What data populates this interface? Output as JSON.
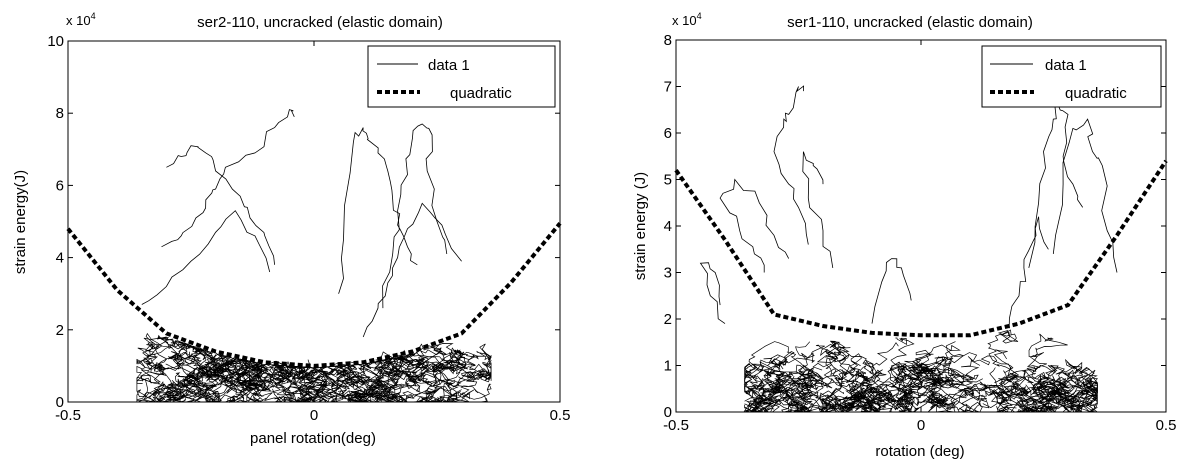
{
  "chart_data": [
    {
      "type": "line",
      "title": "ser2-110, uncracked (elastic domain)",
      "xlabel": "panel rotation(deg)",
      "ylabel": "strain energy(J)",
      "y_exponent_base": "x 10",
      "y_exponent": "4",
      "xlim": [
        -0.5,
        0.5
      ],
      "ylim": [
        0,
        10
      ],
      "xticks": [
        "-0.5",
        "0",
        "0.5"
      ],
      "yticks": [
        "0",
        "2",
        "4",
        "6",
        "8",
        "10"
      ],
      "legend_position": "top-right",
      "series": [
        {
          "name": "data 1",
          "style": "solid",
          "color": "#000000"
        },
        {
          "name": "quadratic",
          "style": "dotted",
          "color": "#000000",
          "x": [
            -0.5,
            -0.4,
            -0.3,
            -0.2,
            -0.1,
            0,
            0.1,
            0.2,
            0.3,
            0.4,
            0.5
          ],
          "y": [
            4.8,
            3.1,
            1.9,
            1.4,
            1.1,
            1.0,
            1.1,
            1.4,
            1.9,
            3.3,
            4.95
          ]
        }
      ],
      "traces": [
        {
          "x": [
            -0.08,
            -0.1,
            -0.13,
            -0.15,
            -0.2,
            -0.22,
            -0.25,
            -0.27,
            -0.3
          ],
          "y": [
            3.8,
            4.6,
            5.1,
            5.7,
            6.4,
            6.9,
            7.1,
            6.8,
            6.5
          ]
        },
        {
          "x": [
            -0.04,
            -0.05,
            -0.08,
            -0.12,
            -0.18,
            -0.2,
            -0.22,
            -0.24,
            -0.27,
            -0.31
          ],
          "y": [
            7.9,
            8.1,
            7.6,
            6.9,
            6.5,
            5.9,
            5.6,
            5.1,
            4.6,
            4.3
          ]
        },
        {
          "x": [
            0.05,
            0.06,
            0.08,
            0.1,
            0.11,
            0.13,
            0.15,
            0.16,
            0.17,
            0.19,
            0.21
          ],
          "y": [
            3.0,
            4.5,
            7.2,
            7.6,
            7.3,
            6.9,
            6.4,
            5.6,
            4.9,
            4.3,
            3.8
          ]
        },
        {
          "x": [
            0.14,
            0.16,
            0.17,
            0.19,
            0.2,
            0.22,
            0.24,
            0.23,
            0.25,
            0.27
          ],
          "y": [
            2.6,
            4.1,
            5.3,
            6.3,
            7.3,
            7.7,
            7.4,
            6.4,
            5.0,
            4.1
          ]
        },
        {
          "x": [
            -0.35,
            -0.3,
            -0.25,
            -0.2,
            -0.16,
            -0.12,
            -0.09
          ],
          "y": [
            2.7,
            3.2,
            3.9,
            4.7,
            5.3,
            4.6,
            3.6
          ]
        },
        {
          "x": [
            0.1,
            0.13,
            0.15,
            0.17,
            0.19,
            0.22,
            0.26,
            0.3
          ],
          "y": [
            1.8,
            2.6,
            3.3,
            4.0,
            4.8,
            5.5,
            4.9,
            3.9
          ]
        }
      ]
    },
    {
      "type": "line",
      "title": "ser1-110, uncracked (elastic domain)",
      "xlabel": "rotation (deg)",
      "ylabel": "strain energy (J)",
      "y_exponent_base": "x 10",
      "y_exponent": "4",
      "xlim": [
        -0.5,
        0.5
      ],
      "ylim": [
        0,
        8
      ],
      "xticks": [
        "-0.5",
        "0",
        "0.5"
      ],
      "yticks": [
        "0",
        "1",
        "2",
        "3",
        "4",
        "5",
        "6",
        "7",
        "8"
      ],
      "legend_position": "top-right",
      "series": [
        {
          "name": "data 1",
          "style": "solid",
          "color": "#000000"
        },
        {
          "name": "quadratic",
          "style": "dotted",
          "color": "#000000",
          "x": [
            -0.5,
            -0.4,
            -0.3,
            -0.2,
            -0.1,
            0,
            0.1,
            0.2,
            0.3,
            0.4,
            0.5
          ],
          "y": [
            5.2,
            3.7,
            2.1,
            1.85,
            1.7,
            1.65,
            1.65,
            1.9,
            2.3,
            3.8,
            5.4
          ]
        }
      ],
      "traces": [
        {
          "x": [
            -0.27,
            -0.3,
            -0.33,
            -0.38,
            -0.41,
            -0.37,
            -0.34,
            -0.32
          ],
          "y": [
            3.3,
            3.8,
            4.5,
            5.0,
            4.6,
            3.9,
            3.4,
            3.0
          ]
        },
        {
          "x": [
            -0.24,
            -0.25,
            -0.27,
            -0.28,
            -0.3,
            -0.27,
            -0.25,
            -0.23
          ],
          "y": [
            6.9,
            7.0,
            6.4,
            6.3,
            5.6,
            4.9,
            4.4,
            3.6
          ]
        },
        {
          "x": [
            -0.2,
            -0.22,
            -0.24,
            -0.23,
            -0.2,
            -0.18
          ],
          "y": [
            4.9,
            5.3,
            5.6,
            4.6,
            3.9,
            3.1
          ]
        },
        {
          "x": [
            0.22,
            0.24,
            0.25,
            0.27,
            0.28,
            0.3,
            0.29,
            0.31,
            0.33
          ],
          "y": [
            3.1,
            4.5,
            5.6,
            6.3,
            6.6,
            6.4,
            5.5,
            4.9,
            4.4
          ]
        },
        {
          "x": [
            0.27,
            0.29,
            0.31,
            0.34,
            0.35,
            0.37,
            0.38,
            0.4
          ],
          "y": [
            3.4,
            4.9,
            6.1,
            6.3,
            5.6,
            5.3,
            3.9,
            3.0
          ]
        },
        {
          "x": [
            -0.41,
            -0.42,
            -0.45,
            -0.43,
            -0.4
          ],
          "y": [
            2.3,
            3.0,
            3.2,
            2.5,
            1.9
          ]
        },
        {
          "x": [
            0.18,
            0.2,
            0.21,
            0.23,
            0.24,
            0.26
          ],
          "y": [
            1.8,
            2.5,
            3.1,
            3.7,
            4.2,
            3.5
          ]
        },
        {
          "x": [
            -0.1,
            -0.08,
            -0.06,
            -0.04,
            -0.02
          ],
          "y": [
            1.9,
            2.8,
            3.3,
            3.1,
            2.4
          ]
        }
      ]
    }
  ]
}
